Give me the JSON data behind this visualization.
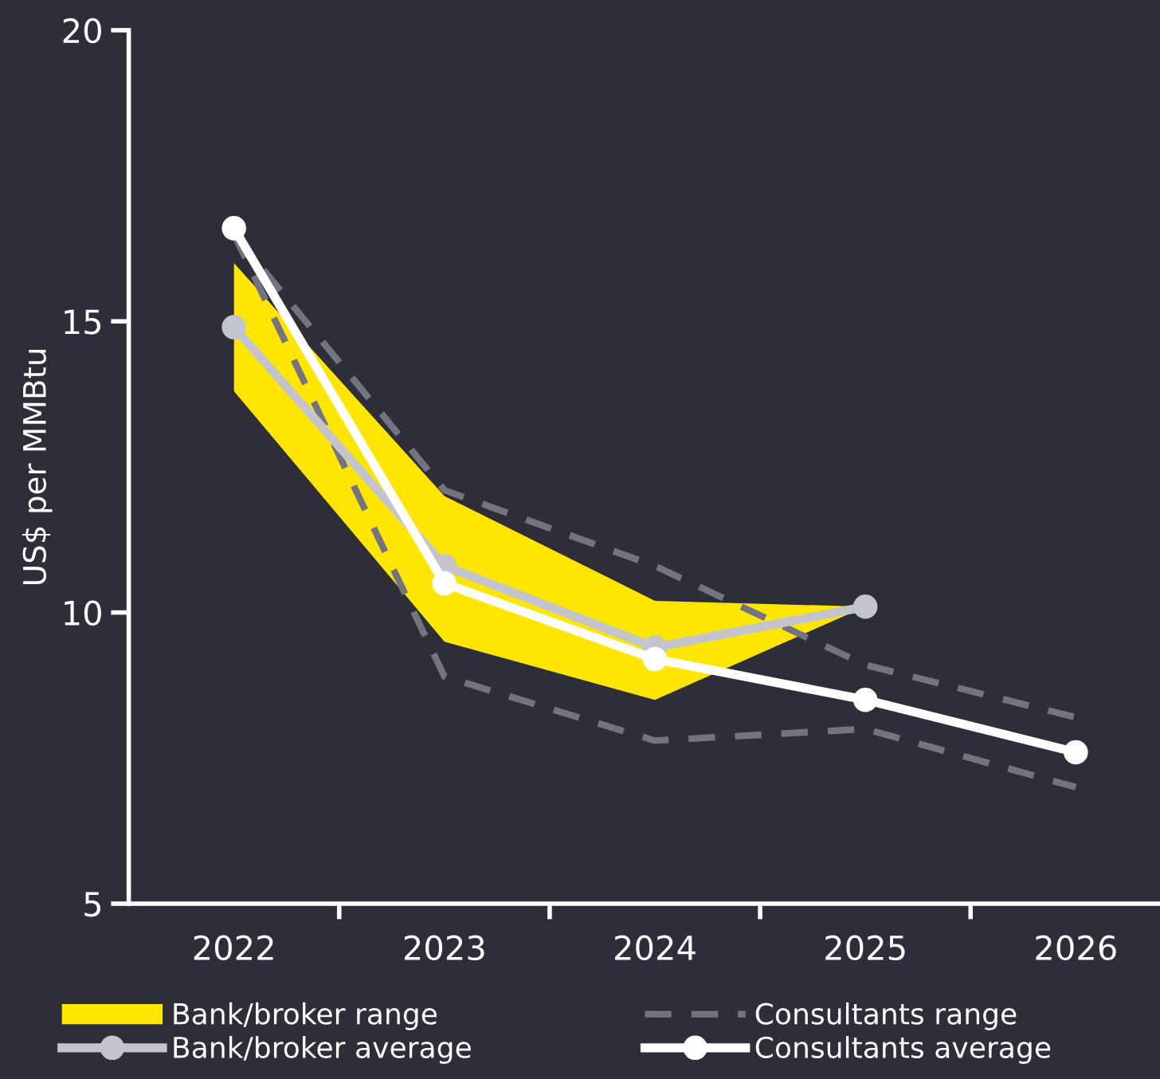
{
  "chart_data": {
    "type": "line",
    "ylabel": "US$ per MMBtu",
    "categories": [
      "2022",
      "2023",
      "2024",
      "2025",
      "2026"
    ],
    "ylim": [
      5,
      20
    ],
    "yticks": [
      5,
      10,
      15,
      20
    ],
    "grid": false,
    "legend": "bottom",
    "series": [
      {
        "name": "Bank/broker range",
        "type": "area",
        "color": "#ffe600",
        "values": [
          null,
          null,
          null,
          null,
          null
        ],
        "lower": [
          13.8,
          9.5,
          8.5,
          10.1,
          null
        ],
        "upper": [
          16.0,
          12.0,
          10.2,
          10.1,
          null
        ]
      },
      {
        "name": "Consultants range",
        "color": "#747480",
        "line_style": "dashed",
        "marker": "none",
        "values": [
          16.5,
          12.1,
          10.8,
          9.1,
          8.2
        ]
      },
      {
        "color": "#747480",
        "line_style": "dashed",
        "marker": "none",
        "values": [
          16.5,
          8.9,
          7.8,
          8.0,
          7.0
        ]
      },
      {
        "name": "Bank/broker average",
        "marker": "circle",
        "color": "#c4c4cd",
        "values": [
          14.9,
          10.8,
          9.4,
          10.1,
          null
        ]
      },
      {
        "name": "Consultants average",
        "marker": "circle",
        "color": "#ffffff",
        "values": [
          16.6,
          10.5,
          9.2,
          8.5,
          7.6
        ]
      }
    ]
  }
}
